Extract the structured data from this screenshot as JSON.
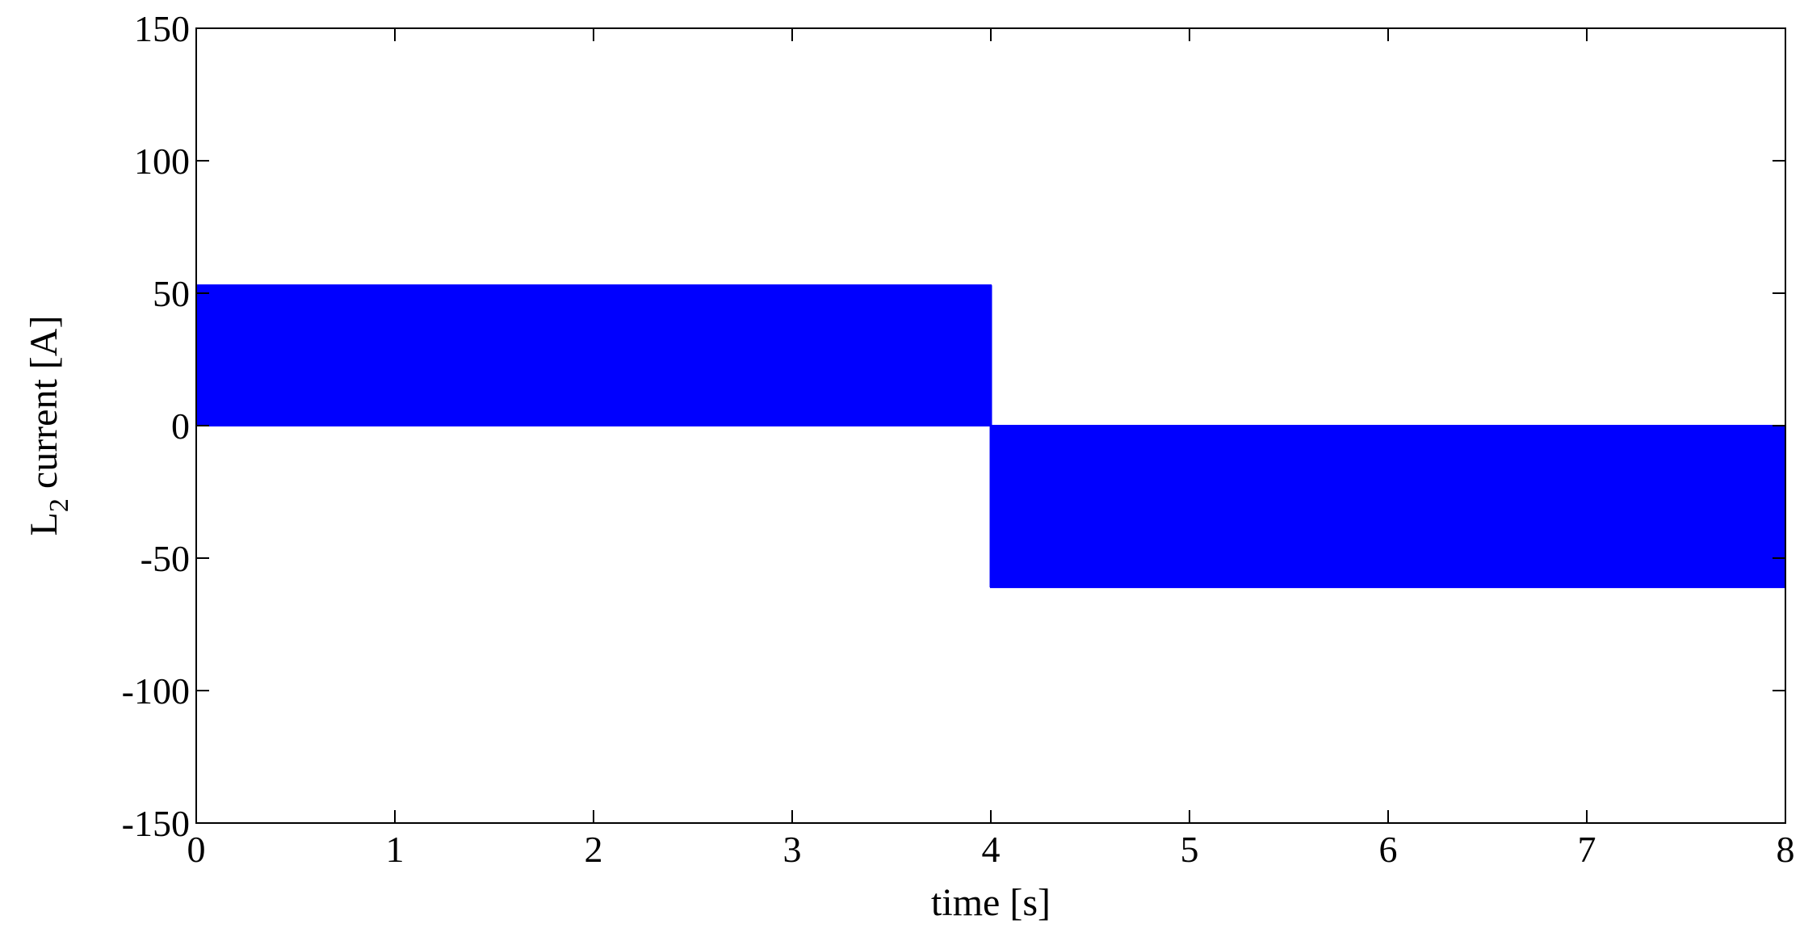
{
  "chart_data": {
    "type": "area",
    "xlabel": "time [s]",
    "ylabel": {
      "base": "L",
      "subscript": "2",
      "rest": " current [A]"
    },
    "xlim": [
      0,
      8
    ],
    "ylim": [
      -150,
      150
    ],
    "xticks": [
      0,
      1,
      2,
      3,
      4,
      5,
      6,
      7,
      8
    ],
    "yticks": [
      -150,
      -100,
      -50,
      0,
      50,
      100,
      150
    ],
    "grid": false,
    "legend": false,
    "color": "#0000ff",
    "series": [
      {
        "x": [
          0,
          4
        ],
        "y_min": [
          0,
          0
        ],
        "y_max": [
          53,
          53
        ]
      },
      {
        "x": [
          4,
          8
        ],
        "y_min": [
          -61,
          -61
        ],
        "y_max": [
          0,
          0
        ]
      }
    ]
  }
}
